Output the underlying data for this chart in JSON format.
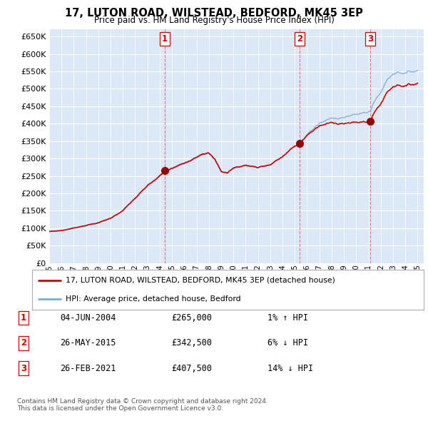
{
  "title": "17, LUTON ROAD, WILSTEAD, BEDFORD, MK45 3EP",
  "subtitle": "Price paid vs. HM Land Registry's House Price Index (HPI)",
  "ylim": [
    0,
    670000
  ],
  "yticks": [
    0,
    50000,
    100000,
    150000,
    200000,
    250000,
    300000,
    350000,
    400000,
    450000,
    500000,
    550000,
    600000,
    650000
  ],
  "sale_year_nums": [
    2004.42,
    2015.4,
    2021.15
  ],
  "sale_prices": [
    265000,
    342500,
    407500
  ],
  "sale_labels": [
    "1",
    "2",
    "3"
  ],
  "table_rows": [
    [
      "1",
      "04-JUN-2004",
      "£265,000",
      "1% ↑ HPI"
    ],
    [
      "2",
      "26-MAY-2015",
      "£342,500",
      "6% ↓ HPI"
    ],
    [
      "3",
      "26-FEB-2021",
      "£407,500",
      "14% ↓ HPI"
    ]
  ],
  "legend_line1": "17, LUTON ROAD, WILSTEAD, BEDFORD, MK45 3EP (detached house)",
  "legend_line2": "HPI: Average price, detached house, Bedford",
  "footer": "Contains HM Land Registry data © Crown copyright and database right 2024.\nThis data is licensed under the Open Government Licence v3.0.",
  "line_color_red": "#cc0000",
  "line_color_blue": "#7aaddc",
  "background_color": "#ffffff",
  "chart_bg_color": "#dce8f5",
  "grid_color": "#ffffff",
  "sale_marker_color": "#990000"
}
